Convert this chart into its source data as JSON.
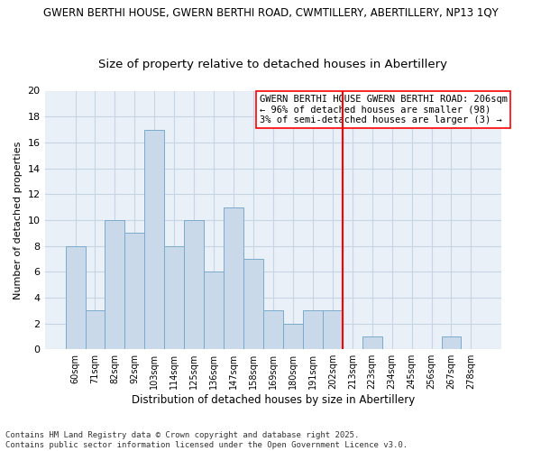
{
  "title_line1": "GWERN BERTHI HOUSE, GWERN BERTHI ROAD, CWMTILLERY, ABERTILLERY, NP13 1QY",
  "title_line2": "Size of property relative to detached houses in Abertillery",
  "xlabel": "Distribution of detached houses by size in Abertillery",
  "ylabel": "Number of detached properties",
  "bin_labels": [
    "60sqm",
    "71sqm",
    "82sqm",
    "92sqm",
    "103sqm",
    "114sqm",
    "125sqm",
    "136sqm",
    "147sqm",
    "158sqm",
    "169sqm",
    "180sqm",
    "191sqm",
    "202sqm",
    "213sqm",
    "223sqm",
    "234sqm",
    "245sqm",
    "256sqm",
    "267sqm",
    "278sqm"
  ],
  "bar_heights": [
    8,
    3,
    10,
    9,
    17,
    8,
    10,
    6,
    11,
    7,
    3,
    2,
    3,
    3,
    0,
    1,
    0,
    0,
    0,
    1,
    0
  ],
  "bar_color": "#c9d9ea",
  "bar_edge_color": "#7aabcc",
  "grid_color": "#c5d5e5",
  "vline_color": "red",
  "vline_pos": 13.5,
  "annotation_line1": "GWERN BERTHI HOUSE GWERN BERTHI ROAD: 206sqm",
  "annotation_line2": "← 96% of detached houses are smaller (98)",
  "annotation_line3": "3% of semi-detached houses are larger (3) →",
  "footnote1": "Contains HM Land Registry data © Crown copyright and database right 2025.",
  "footnote2": "Contains public sector information licensed under the Open Government Licence v3.0.",
  "ylim": [
    0,
    20
  ],
  "yticks": [
    0,
    2,
    4,
    6,
    8,
    10,
    12,
    14,
    16,
    18,
    20
  ],
  "bg_color": "#eaf0f7",
  "title1_fontsize": 8.5,
  "title2_fontsize": 9.5,
  "annot_fontsize": 7.5,
  "xlabel_fontsize": 8.5,
  "ylabel_fontsize": 8.0,
  "footnote_fontsize": 6.5
}
